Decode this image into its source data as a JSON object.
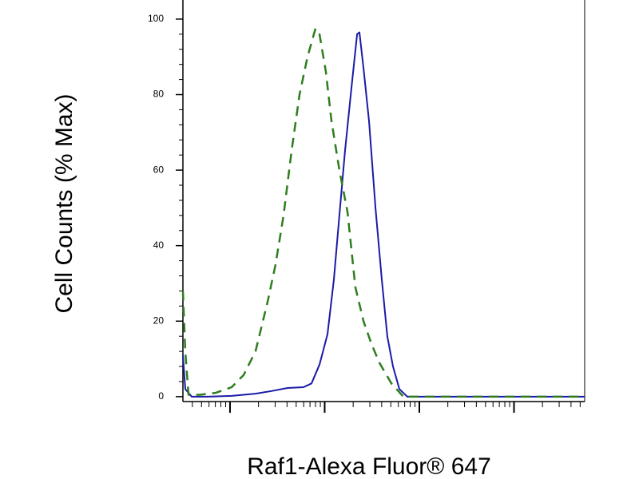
{
  "chart_data": {
    "type": "line",
    "y_label": "Cell Counts (% Max)",
    "x_label": "Raf1-Alexa Fluor® 647",
    "xscale": "log",
    "xlim": [
      3.18,
      55800
    ],
    "xticks": [
      10,
      100,
      1000,
      10000
    ],
    "ylim": [
      -1.3,
      104
    ],
    "yticks": [
      0,
      20,
      40,
      60,
      80,
      100
    ],
    "series": [
      {
        "color": "#1a1aa8",
        "dashed": false,
        "x": [
          3.18,
          3.37,
          3.94,
          5.8,
          10.4,
          18.6,
          27.5,
          40.5,
          59.7,
          72.6,
          88.2,
          107,
          125,
          143,
          164,
          192,
          220,
          233,
          257,
          294,
          344,
          401,
          459,
          527,
          615,
          747,
          1340,
          55800
        ],
        "values": [
          11,
          2,
          0,
          0,
          0.2,
          0.8,
          1.5,
          2.3,
          2.5,
          3.5,
          8.5,
          16.5,
          31,
          48,
          65,
          82,
          96,
          96.5,
          87,
          73,
          50,
          31,
          16,
          8,
          2,
          0,
          0,
          0
        ]
      },
      {
        "color": "#2e7d1e",
        "dashed": true,
        "x": [
          3.18,
          3.37,
          3.64,
          4.77,
          7.05,
          10.4,
          13.9,
          18.6,
          24.9,
          30.3,
          36.8,
          44.7,
          54.2,
          65.9,
          80,
          88.2,
          103,
          118,
          143,
          174,
          211,
          257,
          312,
          378,
          507,
          678,
          1100,
          55800
        ],
        "values": [
          28,
          12,
          0.5,
          0.5,
          1,
          2.5,
          5.7,
          12,
          25,
          35,
          48,
          65,
          80,
          90,
          97.5,
          96,
          86,
          73,
          60,
          49,
          29,
          20,
          14,
          9,
          3.5,
          0,
          0,
          0
        ]
      }
    ]
  }
}
